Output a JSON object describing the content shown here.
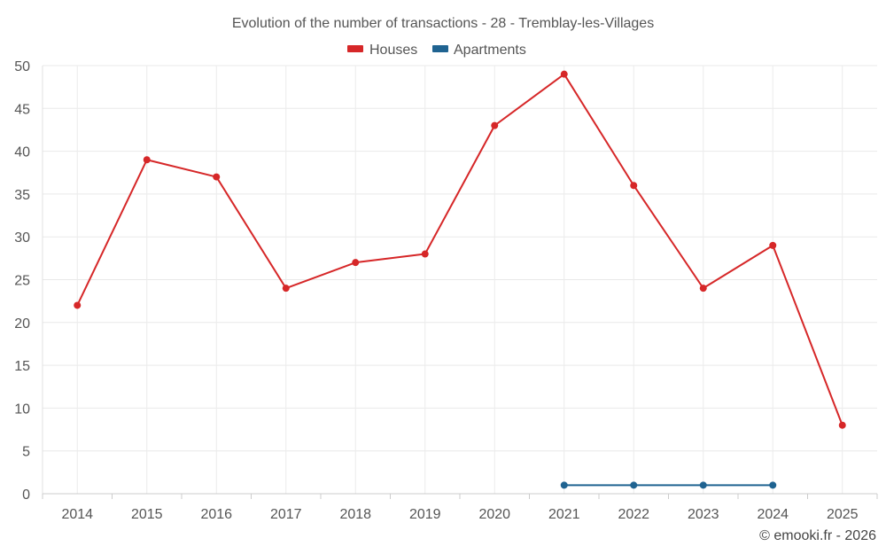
{
  "chart_data": {
    "type": "line",
    "title": "Evolution of the number of transactions - 28 - Tremblay-les-Villages",
    "categories": [
      "2014",
      "2015",
      "2016",
      "2017",
      "2018",
      "2019",
      "2020",
      "2021",
      "2022",
      "2023",
      "2024",
      "2025"
    ],
    "ylim": [
      0,
      50
    ],
    "yticks": [
      0,
      5,
      10,
      15,
      20,
      25,
      30,
      35,
      40,
      45,
      50
    ],
    "grid": true,
    "legend_position": "top-center",
    "series": [
      {
        "name": "Houses",
        "color": "#d62728",
        "values": [
          22,
          39,
          37,
          24,
          27,
          28,
          43,
          49,
          36,
          24,
          29,
          8
        ]
      },
      {
        "name": "Apartments",
        "color": "#1f6391",
        "values": [
          null,
          null,
          null,
          null,
          null,
          null,
          null,
          1,
          1,
          1,
          1,
          null
        ]
      }
    ]
  },
  "credit": "© emooki.fr - 2026"
}
